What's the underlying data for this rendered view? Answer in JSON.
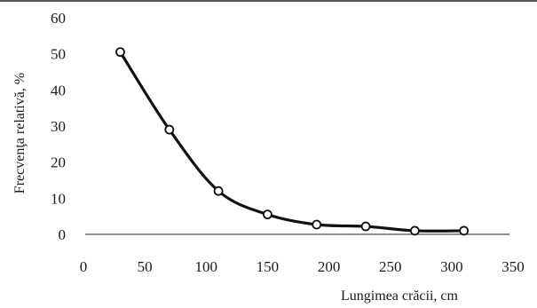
{
  "chart_data": {
    "type": "line",
    "title": "",
    "xlabel": "Lungimea crăcii, cm",
    "ylabel": "Frecvenţa relativă, %",
    "xlim": [
      0,
      350
    ],
    "ylim": [
      0,
      60
    ],
    "xticks": [
      0,
      50,
      100,
      150,
      200,
      250,
      300,
      350
    ],
    "yticks": [
      0,
      10,
      20,
      30,
      40,
      50,
      60
    ],
    "grid": false,
    "legend": "none",
    "smooth": true,
    "markers": "open-circle",
    "series": [
      {
        "x": [
          30,
          70,
          110,
          150,
          190,
          230,
          270,
          310
        ],
        "y": [
          50.5,
          29,
          12,
          5.5,
          2.7,
          2.2,
          1.0,
          1.0
        ]
      }
    ],
    "colors": {
      "line": "#111111",
      "marker_fill": "#ffffff",
      "axis": "#222222"
    }
  }
}
